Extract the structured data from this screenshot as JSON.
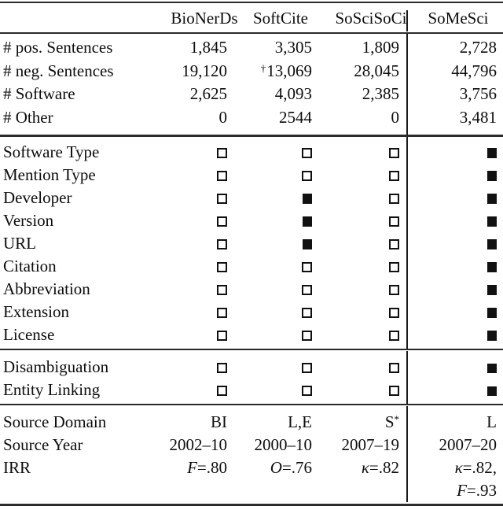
{
  "header": {
    "c1": "BioNerDs",
    "c2": "SoftCite",
    "c3": "SoSciSoCi",
    "c4": "SoMeSci"
  },
  "counts": [
    {
      "label": "# pos. Sentences",
      "c1": "1,845",
      "c2": "3,305",
      "c3": "1,809",
      "c4": "2,728"
    },
    {
      "label": "# neg. Sentences",
      "c1": "19,120",
      "c2_sup": "†",
      "c2": "13,069",
      "c3": "28,045",
      "c4": "44,796"
    },
    {
      "label": "# Software",
      "c1": "2,625",
      "c2": "4,093",
      "c3": "2,385",
      "c4": "3,756"
    },
    {
      "label": "# Other",
      "c1": "0",
      "c2": "2544",
      "c3": "0",
      "c4": "3,481"
    }
  ],
  "attributes": [
    {
      "label": "Software Type",
      "c1": "empty",
      "c2": "empty",
      "c3": "empty",
      "c4": "filled"
    },
    {
      "label": "Mention Type",
      "c1": "empty",
      "c2": "empty",
      "c3": "empty",
      "c4": "filled"
    },
    {
      "label": "Developer",
      "c1": "empty",
      "c2": "filled",
      "c3": "empty",
      "c4": "filled"
    },
    {
      "label": "Version",
      "c1": "empty",
      "c2": "filled",
      "c3": "empty",
      "c4": "filled"
    },
    {
      "label": "URL",
      "c1": "empty",
      "c2": "filled",
      "c3": "empty",
      "c4": "filled"
    },
    {
      "label": "Citation",
      "c1": "empty",
      "c2": "empty",
      "c3": "empty",
      "c4": "filled"
    },
    {
      "label": "Abbreviation",
      "c1": "empty",
      "c2": "empty",
      "c3": "empty",
      "c4": "filled"
    },
    {
      "label": "Extension",
      "c1": "empty",
      "c2": "empty",
      "c3": "empty",
      "c4": "filled"
    },
    {
      "label": "License",
      "c1": "empty",
      "c2": "empty",
      "c3": "empty",
      "c4": "filled"
    }
  ],
  "linking": [
    {
      "label": "Disambiguation",
      "c1": "empty",
      "c2": "empty",
      "c3": "empty",
      "c4": "filled"
    },
    {
      "label": "Entity Linking",
      "c1": "empty",
      "c2": "empty",
      "c3": "empty",
      "c4": "filled"
    }
  ],
  "meta": {
    "domain": {
      "label": "Source Domain",
      "c1": "BI",
      "c2": "L,E",
      "c3_base": "S",
      "c3_sup": "*",
      "c4": "L"
    },
    "year": {
      "label": "Source Year",
      "c1": "2002–10",
      "c2": "2000–10",
      "c3": "2007–19",
      "c4": "2007–20"
    },
    "irr": {
      "label": "IRR",
      "c1_var": "F",
      "c1_val": "=.80",
      "c2_var": "O",
      "c2_val": "=.76",
      "c3_var": "κ",
      "c3_val": "=.82",
      "c4_var": "κ",
      "c4_val": "=.82,",
      "c4b_var": "F",
      "c4b_val": "=.93"
    }
  }
}
